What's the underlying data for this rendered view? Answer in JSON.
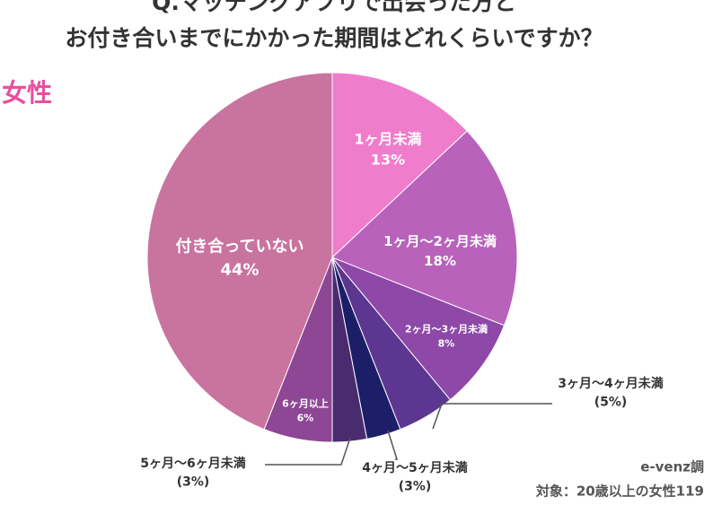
{
  "chart_data": {
    "type": "pie",
    "title": [
      "Q.マッチングアプリで出会った方と",
      "お付き合いまでにかかった期間はどれくらいですか？"
    ],
    "subtitle": "女性",
    "categories": [
      "1ヶ月未満",
      "1ヶ月〜2ヶ月未満",
      "2ヶ月〜3ヶ月未満",
      "3ヶ月〜4ヶ月未満",
      "4ヶ月〜5ヶ月未満",
      "5ヶ月〜6ヶ月未満",
      "6ヶ月以上",
      "付き合っていない"
    ],
    "values": [
      13,
      18,
      8,
      5,
      3,
      3,
      6,
      44
    ],
    "value_labels": [
      "13%",
      "18%",
      "8%",
      "(5%)",
      "(3%)",
      "(3%)",
      "6%",
      "44%"
    ],
    "colors": [
      "#f07ccc",
      "#b862bb",
      "#8d48a8",
      "#5c3690",
      "#1c1f68",
      "#4b2b70",
      "#8d4794",
      "#c9739f"
    ],
    "source": "e-venz調",
    "note": "対象：20歳以上の女性119"
  }
}
